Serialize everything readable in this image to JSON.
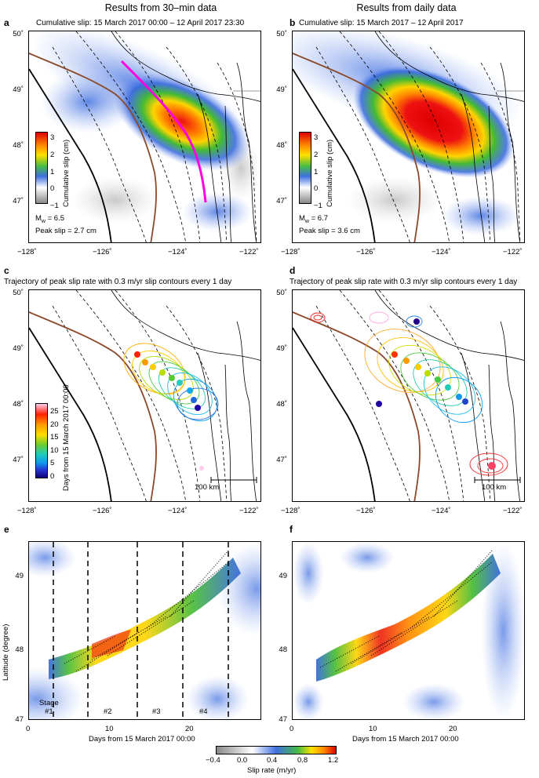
{
  "columns": {
    "left_title": "Results from 30–min data",
    "right_title": "Results from daily data"
  },
  "panels": {
    "a": {
      "label": "a",
      "title": "Cumulative slip: 15 March 2017 00:00 – 12 April 2017 23:30",
      "colorbar_label": "Cumulative slip (cm)",
      "colorbar_ticks": [
        "3",
        "2",
        "1",
        "0",
        "−1"
      ],
      "mw_prefix": "M",
      "mw_sub": "w",
      "mw_value": " = 6.5",
      "peak": "Peak slip = 2.7 cm"
    },
    "b": {
      "label": "b",
      "title": "Cumulative slip: 15 March 2017 – 12 April 2017",
      "colorbar_label": "Cumulative slip (cm)",
      "colorbar_ticks": [
        "3",
        "2",
        "1",
        "0",
        "−1"
      ],
      "mw_prefix": "M",
      "mw_sub": "w",
      "mw_value": " = 6.7",
      "peak": "Peak slip = 3.6 cm"
    },
    "c": {
      "label": "c",
      "title": "Trajectory of peak slip rate with 0.3 m/yr slip contours every 1 day",
      "colorbar_label": "Days from 15 March 2017 00:00",
      "colorbar_ticks": [
        "25",
        "20",
        "15",
        "10",
        "5",
        "0"
      ],
      "scale": "100 km"
    },
    "d": {
      "label": "d",
      "title": "Trajectory of peak slip rate with 0.3 m/yr slip contours every 1 day",
      "scale": "100 km"
    },
    "e": {
      "label": "e",
      "stages": [
        "Stage",
        "#1",
        "#2",
        "#3",
        "#4"
      ],
      "xlabel": "Days from 15 March 2017 00:00",
      "ylabel": "Latitude (degree)"
    },
    "f": {
      "label": "f",
      "xlabel": "Days from 15 March 2017 00:00"
    }
  },
  "map_axes": {
    "lon_ticks": [
      "−128˚",
      "−126˚",
      "−124˚",
      "−122˚"
    ],
    "lat_ticks": [
      "50˚",
      "49˚",
      "48˚",
      "47˚"
    ]
  },
  "time_axes": {
    "x_ticks": [
      "0",
      "10",
      "20"
    ],
    "y_ticks": [
      "49",
      "48",
      "47"
    ]
  },
  "slip_rate_bar": {
    "label": "Slip rate (m/yr)",
    "ticks": [
      "−0.4",
      "0.0",
      "0.4",
      "0.8",
      "1.2"
    ]
  },
  "colors": {
    "trench": "#000000",
    "brown_line": "#8b4a2b",
    "magenta_profile": "#ff00dd",
    "slip_peak": "#ee1111",
    "slip_high": "#ffd400",
    "slip_mid": "#33bb33",
    "slip_low": "#3366dd"
  }
}
